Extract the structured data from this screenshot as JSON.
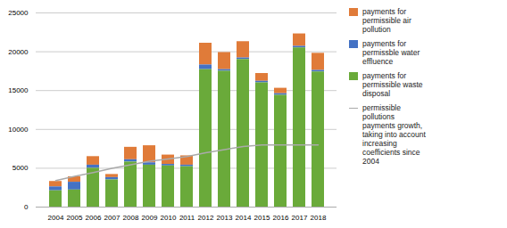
{
  "chart_data": {
    "type": "bar",
    "stacked": true,
    "categories": [
      "2004",
      "2005",
      "2006",
      "2007",
      "2008",
      "2009",
      "2010",
      "2011",
      "2012",
      "2013",
      "2014",
      "2015",
      "2016",
      "2017",
      "2018"
    ],
    "series": [
      {
        "name": "payments for\npermissible air\npollution",
        "color": "#e07b39",
        "values": [
          700,
          700,
          1100,
          400,
          1600,
          2200,
          1200,
          1200,
          2800,
          2200,
          2100,
          1000,
          700,
          1600,
          2200
        ]
      },
      {
        "name": "payments for\npermissble water\neffluence",
        "color": "#4472c4",
        "values": [
          500,
          1000,
          400,
          300,
          300,
          300,
          200,
          200,
          600,
          200,
          200,
          200,
          200,
          200,
          200
        ]
      },
      {
        "name": "payments for\npermissible waste\ndisposal",
        "color": "#6aaa3a",
        "values": [
          2100,
          2200,
          5000,
          3500,
          5800,
          5400,
          5300,
          5200,
          17700,
          17500,
          19000,
          16000,
          14400,
          20500,
          17400
        ]
      },
      {
        "name": "permissible\npollutions\npayments growth,\ntaking into account\nincreasing\ncoefficients since\n2004",
        "color": "#aaaaaa",
        "type": "line",
        "values": [
          3400,
          3950,
          4450,
          5000,
          5450,
          5900,
          6200,
          6500,
          7000,
          7400,
          7800,
          8000,
          8000,
          8000,
          8000
        ]
      }
    ],
    "ylim": [
      0,
      25000
    ],
    "yticks": [
      0,
      5000,
      10000,
      15000,
      20000,
      25000
    ],
    "grid": true,
    "legend": "right"
  }
}
